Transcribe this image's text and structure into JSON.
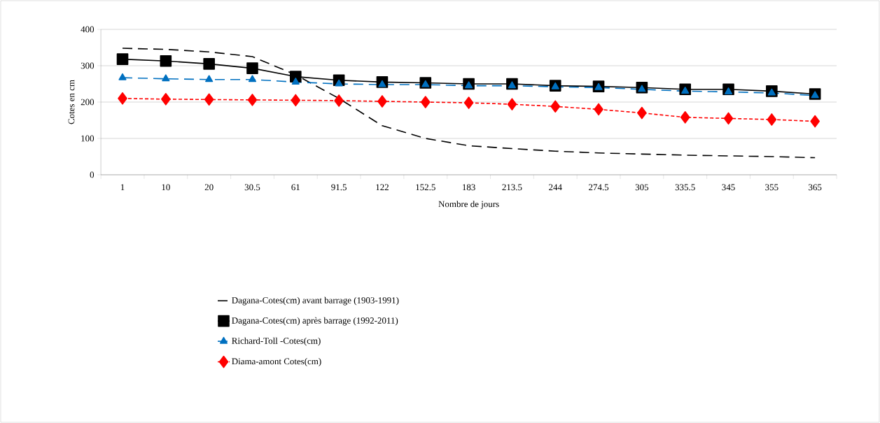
{
  "chart_data": {
    "type": "line",
    "xlabel": "Nombre de jours",
    "ylabel": "Cotes en cm",
    "categories": [
      "1",
      "10",
      "20",
      "30.5",
      "61",
      "91.5",
      "122",
      "152.5",
      "183",
      "213.5",
      "244",
      "274.5",
      "305",
      "335.5",
      "345",
      "355",
      "365"
    ],
    "ylim": [
      0,
      400
    ],
    "yticks": [
      0,
      100,
      200,
      300,
      400
    ],
    "grid": "y",
    "legend": "bottom",
    "series": [
      {
        "name": "Dagana-Cotes(cm) avant barrage (1903-1991)",
        "color": "#000000",
        "line_style": "dashed",
        "marker": "none",
        "values": [
          348,
          345,
          338,
          325,
          275,
          210,
          135,
          100,
          80,
          72,
          65,
          60,
          57,
          54,
          52,
          50,
          47
        ]
      },
      {
        "name": "Dagana-Cotes(cm) après barrage (1992-2011)",
        "color": "#000000",
        "line_style": "solid",
        "marker": "square",
        "values": [
          318,
          313,
          305,
          293,
          270,
          260,
          255,
          253,
          250,
          250,
          245,
          243,
          240,
          235,
          235,
          230,
          222
        ]
      },
      {
        "name": "Richard-Toll -Cotes(cm)",
        "color": "#0070c0",
        "line_style": "dashed",
        "marker": "triangle",
        "values": [
          267,
          264,
          262,
          262,
          255,
          250,
          248,
          248,
          245,
          245,
          242,
          240,
          235,
          230,
          228,
          225,
          218
        ]
      },
      {
        "name": "Diama-amont Cotes(cm)",
        "color": "#ff0000",
        "line_style": "dotted",
        "marker": "diamond",
        "values": [
          210,
          208,
          207,
          206,
          205,
          204,
          202,
          200,
          198,
          194,
          188,
          180,
          170,
          158,
          155,
          152,
          147
        ]
      }
    ]
  }
}
